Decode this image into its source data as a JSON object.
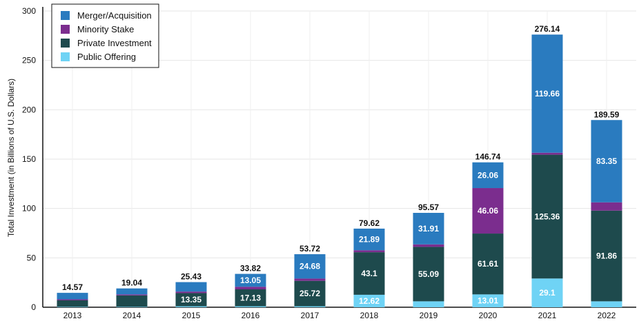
{
  "chart_data": {
    "type": "bar",
    "stacked": true,
    "categories": [
      "2013",
      "2014",
      "2015",
      "2016",
      "2017",
      "2018",
      "2019",
      "2020",
      "2021",
      "2022"
    ],
    "totals": [
      "14.57",
      "19.04",
      "25.43",
      "33.82",
      "53.72",
      "79.62",
      "95.57",
      "146.74",
      "276.14",
      "189.59"
    ],
    "series": [
      {
        "name": "Public Offering",
        "color": "#6fd3f5",
        "values": [
          0.5,
          0.5,
          1.0,
          1.0,
          1.0,
          12.62,
          6.0,
          13.01,
          29.1,
          6.0
        ],
        "labels": [
          "",
          "",
          "",
          "",
          "",
          "12.62",
          "",
          "13.01",
          "29.1",
          ""
        ]
      },
      {
        "name": "Private Investment",
        "color": "#1e4a4d",
        "values": [
          6.5,
          11.5,
          13.35,
          17.13,
          25.72,
          43.1,
          55.09,
          61.61,
          125.36,
          91.86
        ],
        "labels": [
          "",
          "",
          "13.35",
          "17.13",
          "25.72",
          "43.1",
          "55.09",
          "61.61",
          "125.36",
          "91.86"
        ]
      },
      {
        "name": "Minority Stake",
        "color": "#7b2d8e",
        "values": [
          1.0,
          1.0,
          1.5,
          2.6,
          2.3,
          2.0,
          2.57,
          46.06,
          2.02,
          8.38
        ],
        "labels": [
          "",
          "",
          "",
          "",
          "",
          "",
          "",
          "46.06",
          "",
          ""
        ]
      },
      {
        "name": "Merger/Acquisition",
        "color": "#2a7bbf",
        "values": [
          6.57,
          6.04,
          9.58,
          13.05,
          24.68,
          21.89,
          31.91,
          26.06,
          119.66,
          83.35
        ],
        "labels": [
          "",
          "",
          "",
          "13.05",
          "24.68",
          "21.89",
          "31.91",
          "26.06",
          "119.66",
          "83.35"
        ]
      }
    ],
    "legend_order": [
      "Merger/Acquisition",
      "Minority Stake",
      "Private Investment",
      "Public Offering"
    ],
    "legend_position": "top-left",
    "ylabel": "Total Investment (in Billions of U.S. Dollars)",
    "xlabel": "",
    "ylim": [
      0,
      300
    ],
    "yticks": [
      0,
      50,
      100,
      150,
      200,
      250,
      300
    ],
    "grid": true
  }
}
